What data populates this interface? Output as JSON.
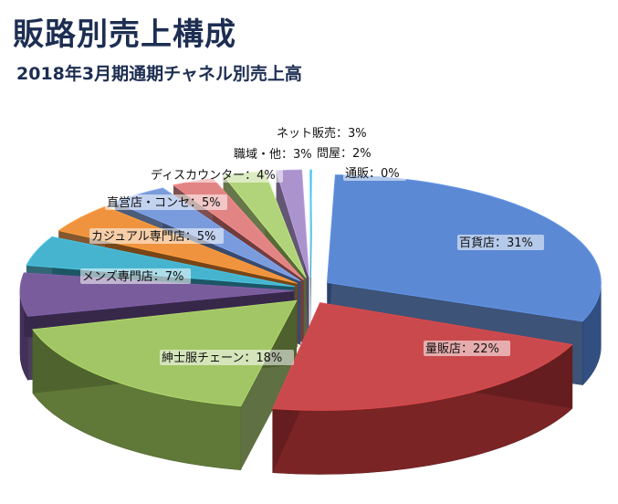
{
  "header": {
    "title": "販路別売上構成",
    "subtitle": "2018年3月期通期チャネル別売上高"
  },
  "chart_data": {
    "type": "pie",
    "title": "販路別売上構成",
    "subtitle": "2018年3月期通期チャネル別売上高",
    "unit": "%",
    "slices": [
      {
        "name": "百貨店",
        "label": "百貨店：31%",
        "value": 31,
        "color": "#4f7fd0"
      },
      {
        "name": "量販店",
        "label": "量販店：22%",
        "value": 22,
        "color": "#c53a3d"
      },
      {
        "name": "紳士服チェーン",
        "label": "紳士服チェーン：18%",
        "value": 18,
        "color": "#9bc25a"
      },
      {
        "name": "メンズ専門店",
        "label": "メンズ専門店：7%",
        "value": 7,
        "color": "#6e4f93"
      },
      {
        "name": "カジュアル専門店",
        "label": "カジュアル専門店：5%",
        "value": 5,
        "color": "#38aecb"
      },
      {
        "name": "直営店・コンセ",
        "label": "直営店・コンセ：5%",
        "value": 5,
        "color": "#ef8a2e"
      },
      {
        "name": "ディスカウンター",
        "label": "ディスカウンター：4%",
        "value": 4,
        "color": "#6f93da"
      },
      {
        "name": "職域・他",
        "label": "職域・他：3%",
        "value": 3,
        "color": "#e07a7a"
      },
      {
        "name": "ネット販売",
        "label": "ネット販売：3%",
        "value": 3,
        "color": "#abd06e"
      },
      {
        "name": "問屋",
        "label": "問屋：2%",
        "value": 2,
        "color": "#a48ac9"
      },
      {
        "name": "通販",
        "label": "通販：0%",
        "value": 0,
        "color": "#4ab9d8"
      }
    ]
  }
}
